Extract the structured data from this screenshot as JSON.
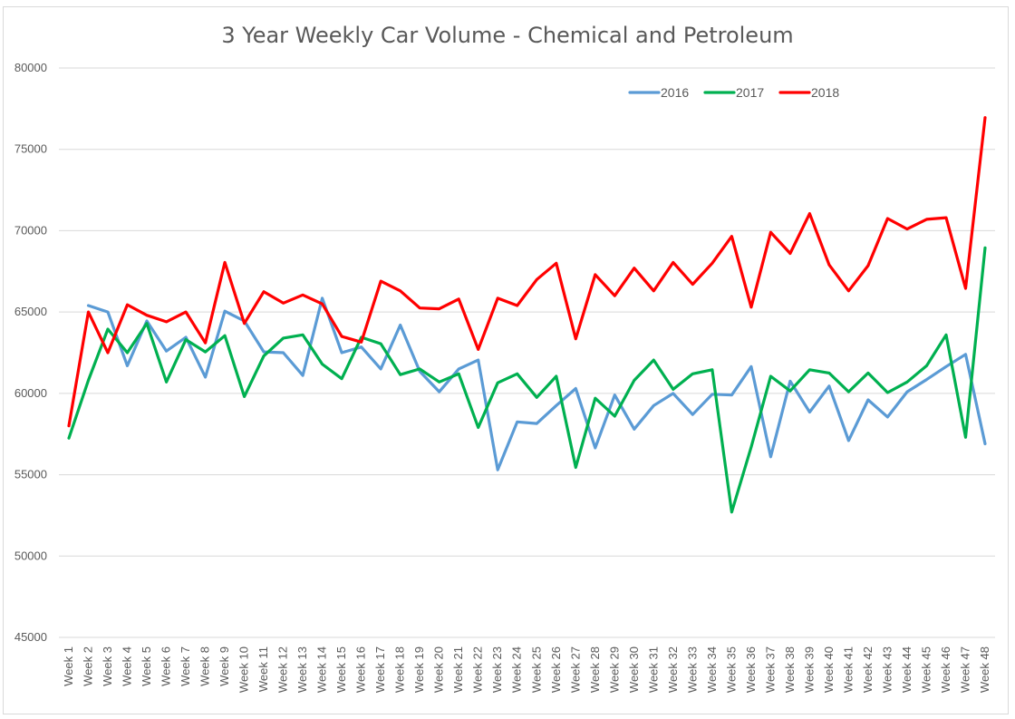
{
  "chart_data": {
    "type": "line",
    "title": "3 Year Weekly Car Volume - Chemical and Petroleum",
    "xlabel": "",
    "ylabel": "",
    "ylim": [
      45000,
      80000
    ],
    "yticks": [
      45000,
      50000,
      55000,
      60000,
      65000,
      70000,
      75000,
      80000
    ],
    "grid": true,
    "legend_position": "top-right",
    "categories": [
      "Week 1",
      "Week 2",
      "Week 3",
      "Week 4",
      "Week 5",
      "Week 6",
      "Week 7",
      "Week 8",
      "Week 9",
      "Week 10",
      "Week 11",
      "Week 12",
      "Week 13",
      "Week 14",
      "Week 15",
      "Week 16",
      "Week 17",
      "Week 18",
      "Week 19",
      "Week 20",
      "Week 21",
      "Week 22",
      "Week 23",
      "Week 24",
      "Week 25",
      "Week 26",
      "Week 27",
      "Week 28",
      "Week 29",
      "Week 30",
      "Week 31",
      "Week 32",
      "Week 33",
      "Week 34",
      "Week 35",
      "Week 36",
      "Week 37",
      "Week 38",
      "Week 39",
      "Week 40",
      "Week 41",
      "Week 42",
      "Week 43",
      "Week 44",
      "Week 45",
      "Week 46",
      "Week 47",
      "Week 48"
    ],
    "series": [
      {
        "name": "2016",
        "color": "#5b9bd5",
        "values": [
          null,
          65400,
          65000,
          61700,
          64450,
          62600,
          63450,
          61000,
          65050,
          64450,
          62550,
          62500,
          61100,
          65850,
          62500,
          62850,
          61500,
          64200,
          61350,
          60100,
          61500,
          62050,
          55300,
          58250,
          58150,
          59250,
          60300,
          56650,
          59900,
          57800,
          59250,
          60000,
          58700,
          59950,
          59900,
          61650,
          56100,
          60750,
          58850,
          60450,
          57100,
          59600,
          58550,
          60100,
          60850,
          61650,
          62400,
          56900
        ]
      },
      {
        "name": "2017",
        "color": "#00b050",
        "values": [
          57250,
          60800,
          63950,
          62500,
          64300,
          60700,
          63300,
          62550,
          63550,
          59800,
          62300,
          63400,
          63600,
          61800,
          60900,
          63450,
          63050,
          61150,
          61500,
          60700,
          61200,
          57900,
          60650,
          61200,
          59750,
          61050,
          55450,
          59700,
          58600,
          60800,
          62050,
          60250,
          61200,
          61450,
          52700,
          56700,
          61050,
          60150,
          61450,
          61250,
          60100,
          61250,
          60050,
          60700,
          61700,
          63600,
          57300,
          68950
        ]
      },
      {
        "name": "2018",
        "color": "#ff0000",
        "values": [
          58000,
          65000,
          62500,
          65450,
          64800,
          64400,
          65000,
          63100,
          68050,
          64300,
          66250,
          65550,
          66050,
          65500,
          63500,
          63150,
          66900,
          66300,
          65250,
          65200,
          65800,
          62700,
          65850,
          65400,
          67000,
          68000,
          63350,
          67300,
          66000,
          67700,
          66300,
          68050,
          66700,
          68000,
          69650,
          65300,
          69900,
          68600,
          71050,
          67900,
          66300,
          67850,
          70750,
          70100,
          70700,
          70800,
          66450,
          76950
        ]
      }
    ]
  }
}
